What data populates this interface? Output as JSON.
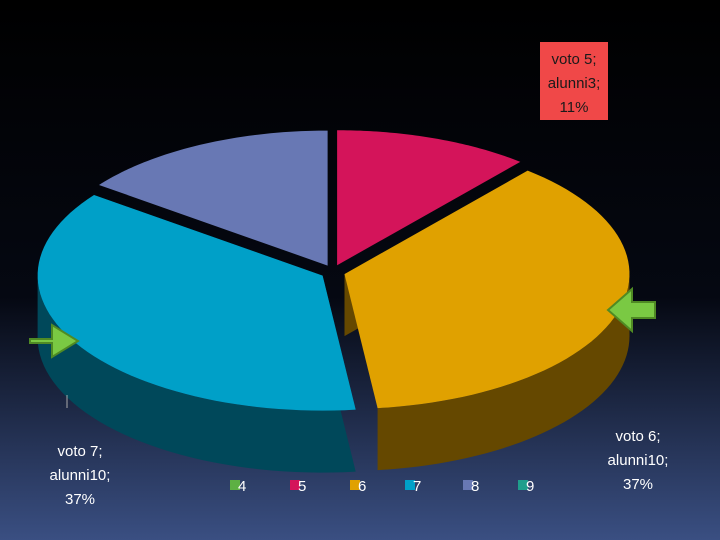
{
  "chart_data": {
    "type": "pie3d",
    "categories": [
      "4",
      "5",
      "6",
      "7",
      "8",
      "9"
    ],
    "values": [
      0,
      3,
      10,
      10,
      4,
      0
    ],
    "colors": [
      "#5db043",
      "#d4145a",
      "#e0a100",
      "#00a0c8",
      "#6878b4",
      "#1f9e8c"
    ],
    "value_labels": [
      null,
      [
        "voto 5;",
        "alunni3;",
        "11%"
      ],
      [
        "voto 6;",
        "alunni10;",
        "37%"
      ],
      [
        "voto 7;",
        "alunni10;",
        "37%"
      ],
      null,
      null
    ],
    "legend": "bottom"
  }
}
